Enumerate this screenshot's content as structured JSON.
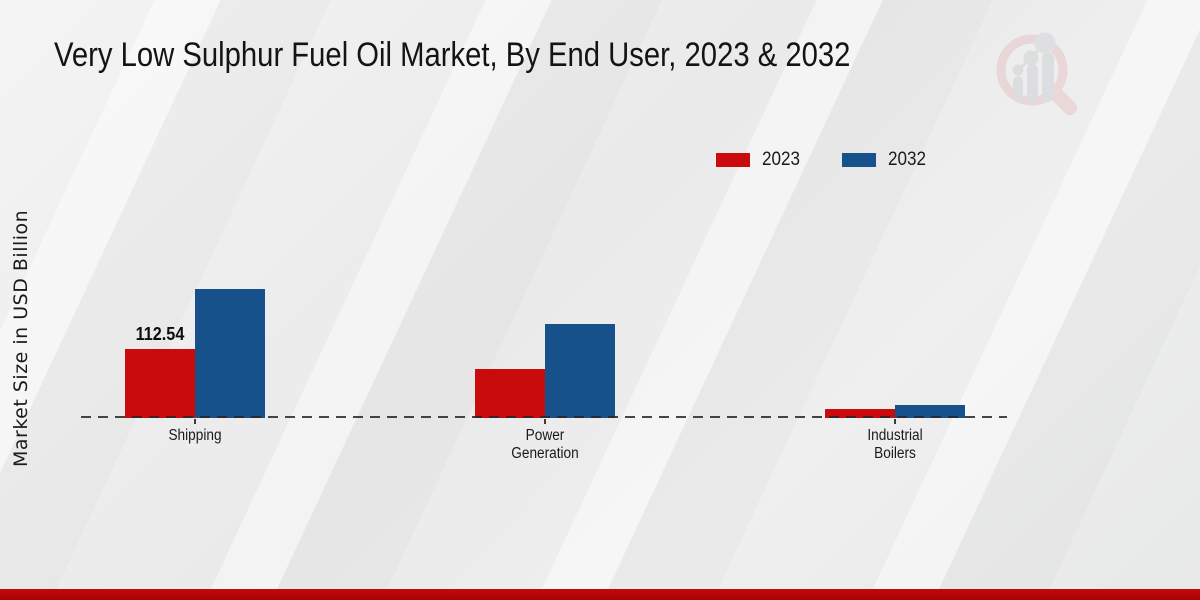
{
  "chart_data": {
    "type": "bar",
    "title": "Very Low Sulphur Fuel Oil Market, By End User, 2023 & 2032",
    "xlabel": "",
    "ylabel": "Market Size in USD Billion",
    "categories": [
      "Shipping",
      "Power Generation",
      "Industrial Boilers"
    ],
    "series": [
      {
        "name": "2023",
        "color": "#c90b0b",
        "values": [
          112.54,
          80.7,
          13.9
        ]
      },
      {
        "name": "2032",
        "color": "#17518b",
        "values": [
          209.6,
          154.1,
          20.4
        ]
      }
    ],
    "data_labels": [
      {
        "series": "2023",
        "category": "Shipping",
        "text": "112.54"
      }
    ],
    "legend_position": "upper-right",
    "grid": false,
    "baseline_style": "dashed",
    "ylim": [
      0,
      230
    ]
  },
  "legend": {
    "items": [
      {
        "label": "2023",
        "color": "#c90b0b"
      },
      {
        "label": "2032",
        "color": "#17518b"
      }
    ]
  },
  "branding": {
    "watermark_icon": "magnifier-bar-chart-logo",
    "footer_bar_color": "#b80707",
    "watermark_ring_color": "#e7c5c7",
    "watermark_bar_color": "#ced0d5"
  }
}
